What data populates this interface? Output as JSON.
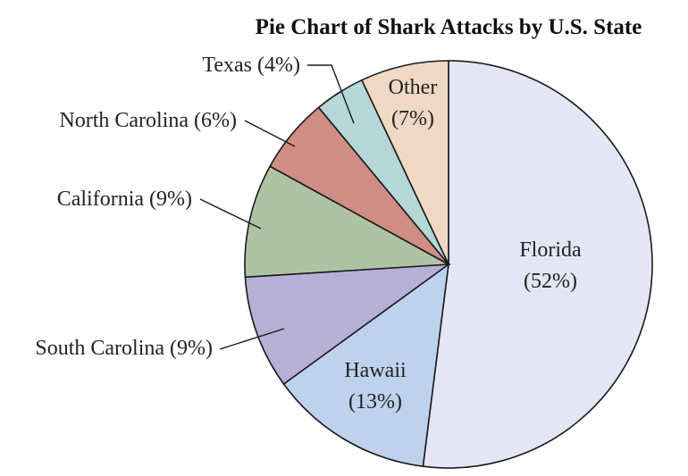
{
  "chart_data": {
    "type": "pie",
    "title": "Pie Chart of Shark Attacks by U.S. State",
    "slices": [
      {
        "label": "Florida",
        "percent_label": "(52%)",
        "value": 52,
        "color": "#e4e6f6"
      },
      {
        "label": "Hawaii",
        "percent_label": "(13%)",
        "value": 13,
        "color": "#bed2ee"
      },
      {
        "label": "South Carolina",
        "percent_label": "(9%)",
        "value": 9,
        "color": "#b6b0d6"
      },
      {
        "label": "California",
        "percent_label": "(9%)",
        "value": 9,
        "color": "#aec3a4"
      },
      {
        "label": "North Carolina",
        "percent_label": "(6%)",
        "value": 6,
        "color": "#cf8d84"
      },
      {
        "label": "Texas",
        "percent_label": "(4%)",
        "value": 4,
        "color": "#b5d7d8"
      },
      {
        "label": "Other",
        "percent_label": "(7%)",
        "value": 7,
        "color": "#efd8c4"
      }
    ]
  }
}
